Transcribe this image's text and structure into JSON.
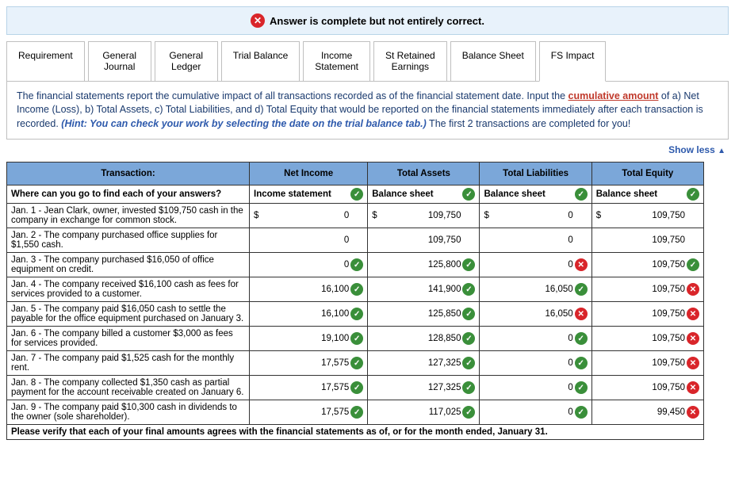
{
  "alert": {
    "text": "Answer is complete but not entirely correct."
  },
  "tabs": [
    {
      "label": "Requirement"
    },
    {
      "label": "General\nJournal"
    },
    {
      "label": "General\nLedger"
    },
    {
      "label": "Trial Balance"
    },
    {
      "label": "Income\nStatement"
    },
    {
      "label": "St Retained\nEarnings"
    },
    {
      "label": "Balance Sheet"
    },
    {
      "label": "FS Impact"
    }
  ],
  "active_tab": 7,
  "instruction": {
    "p1": "The financial statements report the cumulative impact of all transactions recorded as of the financial statement date. Input the ",
    "cum": "cumulative amount",
    "p2": " of a) Net Income (Loss), b) Total Assets, c) Total Liabilities, and d) Total Equity that would be reported on the financial statements immediately after each transaction is recorded. ",
    "hint": "(Hint: You can check your work by selecting the date on the trial balance tab.)",
    "p3": " The first 2 transactions are completed for you!"
  },
  "show_less": "Show less",
  "headers": {
    "transaction": "Transaction:",
    "c1": "Net Income",
    "c2": "Total Assets",
    "c3": "Total Liabilities",
    "c4": "Total Equity"
  },
  "rows": [
    {
      "txn": "Where can you go to find each of your answers?",
      "bold": true,
      "c1": {
        "text": "Income statement",
        "mark": "ok",
        "align": "left"
      },
      "c2": {
        "text": "Balance sheet",
        "mark": "ok",
        "align": "left"
      },
      "c3": {
        "text": "Balance sheet",
        "mark": "ok",
        "align": "left"
      },
      "c4": {
        "text": "Balance sheet",
        "mark": "ok",
        "align": "left"
      }
    },
    {
      "txn": "Jan. 1 - Jean Clark, owner, invested $109,750 cash in the company in exchange for common stock.",
      "c1": {
        "prefix": "$",
        "text": "0",
        "mark": "none"
      },
      "c2": {
        "prefix": "$",
        "text": "109,750",
        "mark": "none"
      },
      "c3": {
        "prefix": "$",
        "text": "0",
        "mark": "none"
      },
      "c4": {
        "prefix": "$",
        "text": "109,750",
        "mark": "none"
      }
    },
    {
      "txn": "Jan. 2 - The company purchased office supplies for $1,550 cash.",
      "c1": {
        "text": "0",
        "mark": "none"
      },
      "c2": {
        "text": "109,750",
        "mark": "none"
      },
      "c3": {
        "text": "0",
        "mark": "none"
      },
      "c4": {
        "text": "109,750",
        "mark": "none"
      }
    },
    {
      "txn": "Jan. 3 - The company purchased $16,050 of office equipment on credit.",
      "c1": {
        "text": "0",
        "mark": "ok"
      },
      "c2": {
        "text": "125,800",
        "mark": "ok"
      },
      "c3": {
        "text": "0",
        "mark": "bad"
      },
      "c4": {
        "text": "109,750",
        "mark": "ok"
      }
    },
    {
      "txn": "Jan. 4 - The company received $16,100 cash as fees for services provided to a customer.",
      "c1": {
        "text": "16,100",
        "mark": "ok"
      },
      "c2": {
        "text": "141,900",
        "mark": "ok"
      },
      "c3": {
        "text": "16,050",
        "mark": "ok"
      },
      "c4": {
        "text": "109,750",
        "mark": "bad"
      }
    },
    {
      "txn": "Jan. 5 - The company paid $16,050 cash to settle the payable for the office equipment purchased on January 3.",
      "c1": {
        "text": "16,100",
        "mark": "ok"
      },
      "c2": {
        "text": "125,850",
        "mark": "ok"
      },
      "c3": {
        "text": "16,050",
        "mark": "bad"
      },
      "c4": {
        "text": "109,750",
        "mark": "bad"
      }
    },
    {
      "txn": "Jan. 6 - The company billed a customer $3,000 as fees for services provided.",
      "c1": {
        "text": "19,100",
        "mark": "ok"
      },
      "c2": {
        "text": "128,850",
        "mark": "ok"
      },
      "c3": {
        "text": "0",
        "mark": "ok"
      },
      "c4": {
        "text": "109,750",
        "mark": "bad"
      }
    },
    {
      "txn": "Jan. 7 - The company paid $1,525 cash for the monthly rent.",
      "c1": {
        "text": "17,575",
        "mark": "ok"
      },
      "c2": {
        "text": "127,325",
        "mark": "ok"
      },
      "c3": {
        "text": "0",
        "mark": "ok"
      },
      "c4": {
        "text": "109,750",
        "mark": "bad"
      }
    },
    {
      "txn": "Jan. 8 - The company collected $1,350 cash as partial payment for the account receivable created on January 6.",
      "c1": {
        "text": "17,575",
        "mark": "ok"
      },
      "c2": {
        "text": "127,325",
        "mark": "ok"
      },
      "c3": {
        "text": "0",
        "mark": "ok"
      },
      "c4": {
        "text": "109,750",
        "mark": "bad"
      }
    },
    {
      "txn": "Jan. 9 - The company paid $10,300 cash in dividends to the owner (sole shareholder).",
      "c1": {
        "text": "17,575",
        "mark": "ok"
      },
      "c2": {
        "text": "117,025",
        "mark": "ok"
      },
      "c3": {
        "text": "0",
        "mark": "ok"
      },
      "c4": {
        "text": "99,450",
        "mark": "bad"
      }
    }
  ],
  "footer": "Please verify that each of your final amounts agrees with the financial statements as of, or for the month ended, January 31."
}
